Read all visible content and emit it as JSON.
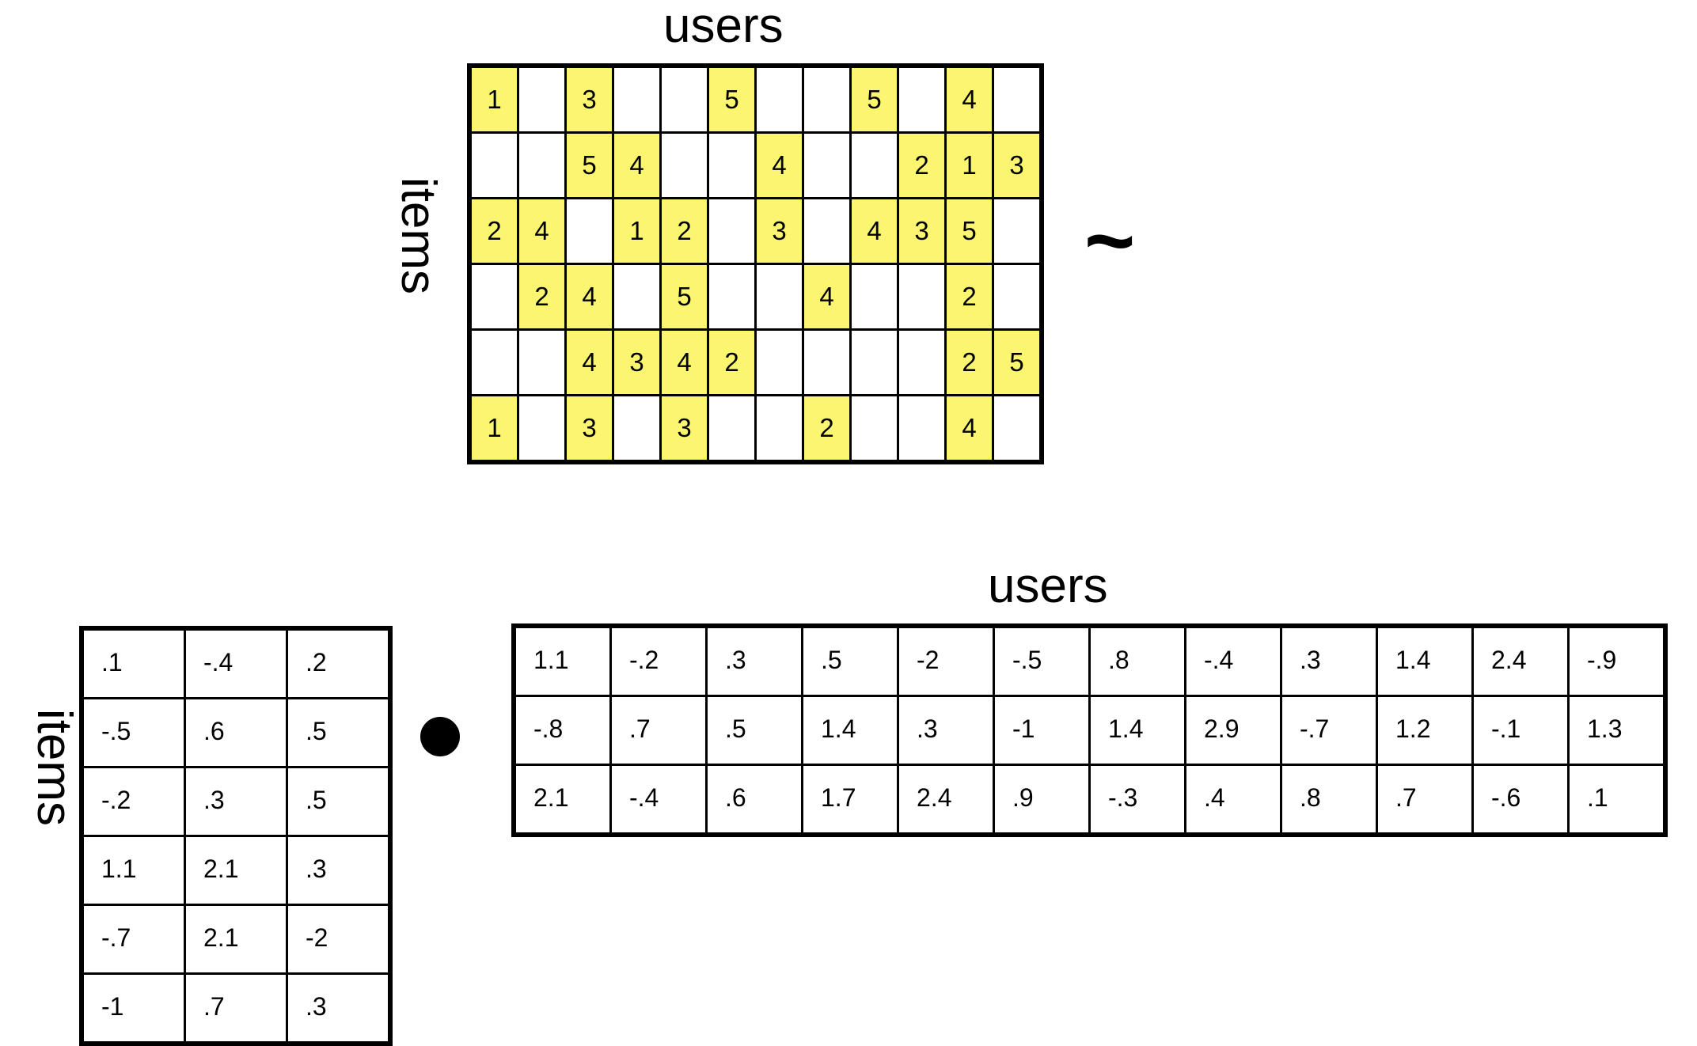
{
  "colors": {
    "rated": "#fbf570",
    "empty": "#ffffff",
    "border": "#000000"
  },
  "ratings": {
    "users_label": "users",
    "items_label": "items",
    "rows": [
      [
        "1",
        "",
        "3",
        "",
        "",
        "5",
        "",
        "",
        "5",
        "",
        "4",
        ""
      ],
      [
        "",
        "",
        "5",
        "4",
        "",
        "",
        "4",
        "",
        "",
        "2",
        "1",
        "3"
      ],
      [
        "2",
        "4",
        "",
        "1",
        "2",
        "",
        "3",
        "",
        "4",
        "3",
        "5",
        ""
      ],
      [
        "",
        "2",
        "4",
        "",
        "5",
        "",
        "",
        "4",
        "",
        "",
        "2",
        ""
      ],
      [
        "",
        "",
        "4",
        "3",
        "4",
        "2",
        "",
        "",
        "",
        "",
        "2",
        "5"
      ],
      [
        "1",
        "",
        "3",
        "",
        "3",
        "",
        "",
        "2",
        "",
        "",
        "4",
        ""
      ]
    ]
  },
  "approx_symbol": "~",
  "item_factors": {
    "items_label": "items",
    "rows": [
      [
        ".1",
        "-.4",
        ".2"
      ],
      [
        "-.5",
        ".6",
        ".5"
      ],
      [
        "-.2",
        ".3",
        ".5"
      ],
      [
        "1.1",
        "2.1",
        ".3"
      ],
      [
        "-.7",
        "2.1",
        "-2"
      ],
      [
        "-1",
        ".7",
        ".3"
      ]
    ]
  },
  "user_factors": {
    "users_label": "users",
    "rows": [
      [
        "1.1",
        "-.2",
        ".3",
        ".5",
        "-2",
        "-.5",
        ".8",
        "-.4",
        ".3",
        "1.4",
        "2.4",
        "-.9"
      ],
      [
        "-.8",
        ".7",
        ".5",
        "1.4",
        ".3",
        "-1",
        "1.4",
        "2.9",
        "-.7",
        "1.2",
        "-.1",
        "1.3"
      ],
      [
        "2.1",
        "-.4",
        ".6",
        "1.7",
        "2.4",
        ".9",
        "-.3",
        ".4",
        ".8",
        ".7",
        "-.6",
        ".1"
      ]
    ]
  }
}
